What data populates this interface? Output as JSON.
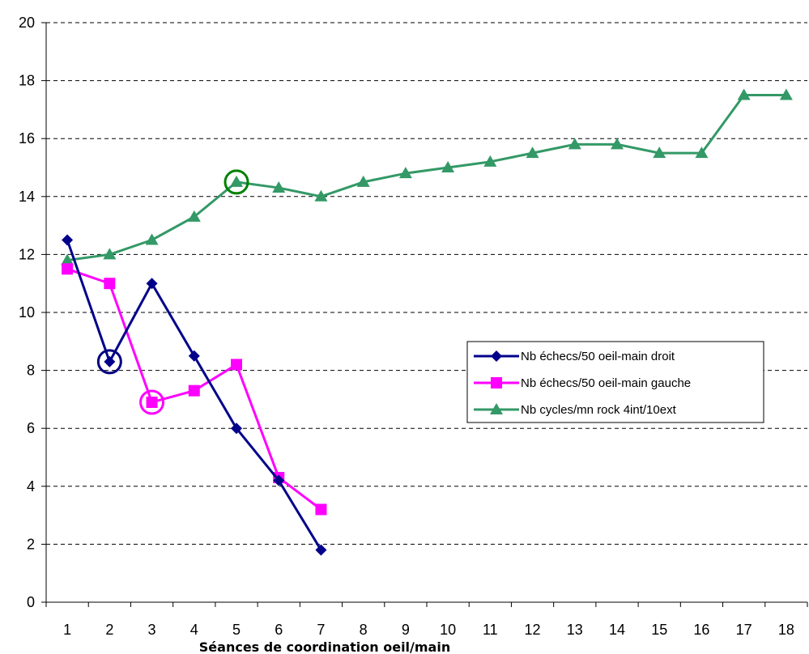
{
  "chart_data": {
    "type": "line",
    "title": "",
    "xlabel": "Séances de coordination oeil/main",
    "ylabel": "",
    "xlim": [
      0.5,
      18.5
    ],
    "ylim": [
      0,
      20
    ],
    "x_ticks": [
      1,
      2,
      3,
      4,
      5,
      6,
      7,
      8,
      9,
      10,
      11,
      12,
      13,
      14,
      15,
      16,
      17,
      18
    ],
    "y_ticks": [
      0,
      2,
      4,
      6,
      8,
      10,
      12,
      14,
      16,
      18,
      20
    ],
    "grid": "horizontal-dashed",
    "legend_position": "right-middle",
    "series": [
      {
        "name": "Nb échecs/50 oeil-main droit",
        "color": "#00008B",
        "marker": "diamond",
        "x": [
          1,
          2,
          3,
          4,
          5,
          6,
          7
        ],
        "y": [
          12.5,
          8.3,
          11.0,
          8.5,
          6.0,
          4.2,
          1.8
        ],
        "highlight_x": 2
      },
      {
        "name": "Nb échecs/50 oeil-main gauche",
        "color": "#FF00FF",
        "marker": "square",
        "x": [
          1,
          2,
          3,
          4,
          5,
          6,
          7
        ],
        "y": [
          11.5,
          11.0,
          6.9,
          7.3,
          8.2,
          4.3,
          3.2
        ],
        "highlight_x": 3
      },
      {
        "name": "Nb cycles/mn rock 4int/10ext",
        "color": "#339966",
        "marker": "triangle",
        "x": [
          1,
          2,
          3,
          4,
          5,
          6,
          7,
          8,
          9,
          10,
          11,
          12,
          13,
          14,
          15,
          16,
          17,
          18
        ],
        "y": [
          11.8,
          12.0,
          12.5,
          13.3,
          14.5,
          14.3,
          14.0,
          14.5,
          14.8,
          15.0,
          15.2,
          15.5,
          15.8,
          15.8,
          15.5,
          15.5,
          17.5,
          17.5
        ],
        "highlight_x": 5
      }
    ],
    "highlight_colors": [
      "#000080",
      "#FF00FF",
      "#008000"
    ]
  }
}
